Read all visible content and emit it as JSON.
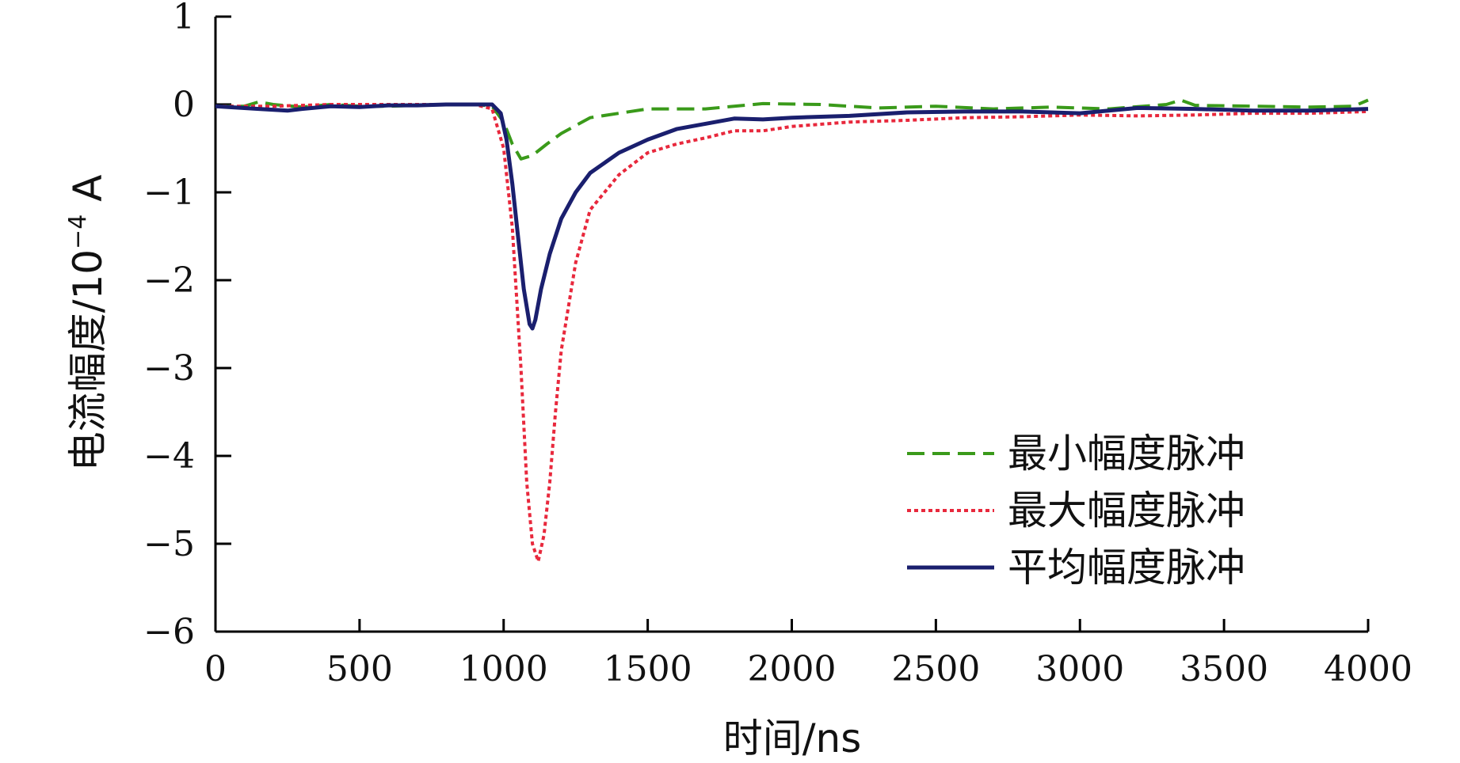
{
  "chart_data": {
    "type": "line",
    "xlabel": "时间/ns",
    "ylabel_main": "电流幅度/10",
    "ylabel_exp": "−4",
    "ylabel_unit": " A",
    "xlim": [
      0,
      4000
    ],
    "ylim": [
      -6,
      1
    ],
    "xticks": [
      0,
      500,
      1000,
      1500,
      2000,
      2500,
      3000,
      3500,
      4000
    ],
    "xtick_labels": [
      "0",
      "500",
      "1000",
      "1500",
      "2000",
      "2500",
      "3000",
      "3500",
      "4000"
    ],
    "yticks": [
      1,
      0,
      -1,
      -2,
      -3,
      -4,
      -5,
      -6
    ],
    "ytick_labels": [
      "1",
      "0",
      "−1",
      "−2",
      "−3",
      "−4",
      "−5",
      "−6"
    ],
    "legend_position": "bottom-right",
    "series": [
      {
        "name": "最小幅度脉冲",
        "color": "#3a9a1a",
        "style": "dashed",
        "x": [
          0,
          100,
          150,
          200,
          300,
          400,
          500,
          600,
          700,
          800,
          900,
          960,
          1000,
          1030,
          1060,
          1100,
          1150,
          1200,
          1300,
          1400,
          1500,
          1700,
          1900,
          2100,
          2300,
          2500,
          2700,
          2900,
          3100,
          3300,
          3350,
          3400,
          3600,
          3800,
          3950,
          4000
        ],
        "y": [
          -0.02,
          -0.02,
          0.03,
          0.0,
          -0.03,
          0.0,
          -0.02,
          -0.02,
          -0.01,
          0.0,
          0.0,
          -0.02,
          -0.2,
          -0.45,
          -0.62,
          -0.58,
          -0.45,
          -0.33,
          -0.15,
          -0.1,
          -0.05,
          -0.05,
          0.01,
          0.0,
          -0.04,
          -0.02,
          -0.05,
          -0.03,
          -0.05,
          0.0,
          0.05,
          -0.01,
          -0.02,
          -0.03,
          -0.02,
          0.05
        ]
      },
      {
        "name": "最大幅度脉冲",
        "color": "#e8283c",
        "style": "dotted",
        "x": [
          0,
          200,
          400,
          600,
          800,
          900,
          960,
          1000,
          1030,
          1060,
          1080,
          1100,
          1120,
          1140,
          1160,
          1180,
          1200,
          1250,
          1300,
          1400,
          1500,
          1600,
          1700,
          1800,
          1900,
          2000,
          2200,
          2400,
          2600,
          2800,
          3000,
          3200,
          3400,
          3600,
          3800,
          4000
        ],
        "y": [
          -0.02,
          -0.02,
          0.0,
          0.0,
          0.0,
          0.0,
          -0.05,
          -0.5,
          -1.4,
          -3.0,
          -4.3,
          -5.0,
          -5.2,
          -4.9,
          -4.3,
          -3.5,
          -2.8,
          -1.8,
          -1.2,
          -0.8,
          -0.55,
          -0.45,
          -0.38,
          -0.3,
          -0.3,
          -0.25,
          -0.2,
          -0.18,
          -0.15,
          -0.14,
          -0.12,
          -0.13,
          -0.12,
          -0.1,
          -0.1,
          -0.08
        ]
      },
      {
        "name": "平均幅度脉冲",
        "color": "#1a1f6e",
        "style": "solid",
        "x": [
          0,
          150,
          250,
          300,
          400,
          500,
          600,
          700,
          800,
          900,
          960,
          990,
          1010,
          1030,
          1050,
          1070,
          1090,
          1100,
          1110,
          1130,
          1160,
          1200,
          1250,
          1300,
          1400,
          1500,
          1600,
          1700,
          1800,
          1900,
          2000,
          2200,
          2400,
          2600,
          2800,
          3000,
          3200,
          3400,
          3600,
          3800,
          4000
        ],
        "y": [
          -0.02,
          -0.05,
          -0.07,
          -0.05,
          -0.02,
          -0.03,
          -0.01,
          -0.01,
          0.0,
          0.0,
          0.0,
          -0.1,
          -0.4,
          -0.9,
          -1.5,
          -2.1,
          -2.5,
          -2.55,
          -2.45,
          -2.1,
          -1.7,
          -1.3,
          -1.0,
          -0.78,
          -0.55,
          -0.4,
          -0.28,
          -0.22,
          -0.16,
          -0.17,
          -0.15,
          -0.13,
          -0.09,
          -0.08,
          -0.08,
          -0.1,
          -0.04,
          -0.05,
          -0.07,
          -0.07,
          -0.05
        ]
      }
    ]
  }
}
